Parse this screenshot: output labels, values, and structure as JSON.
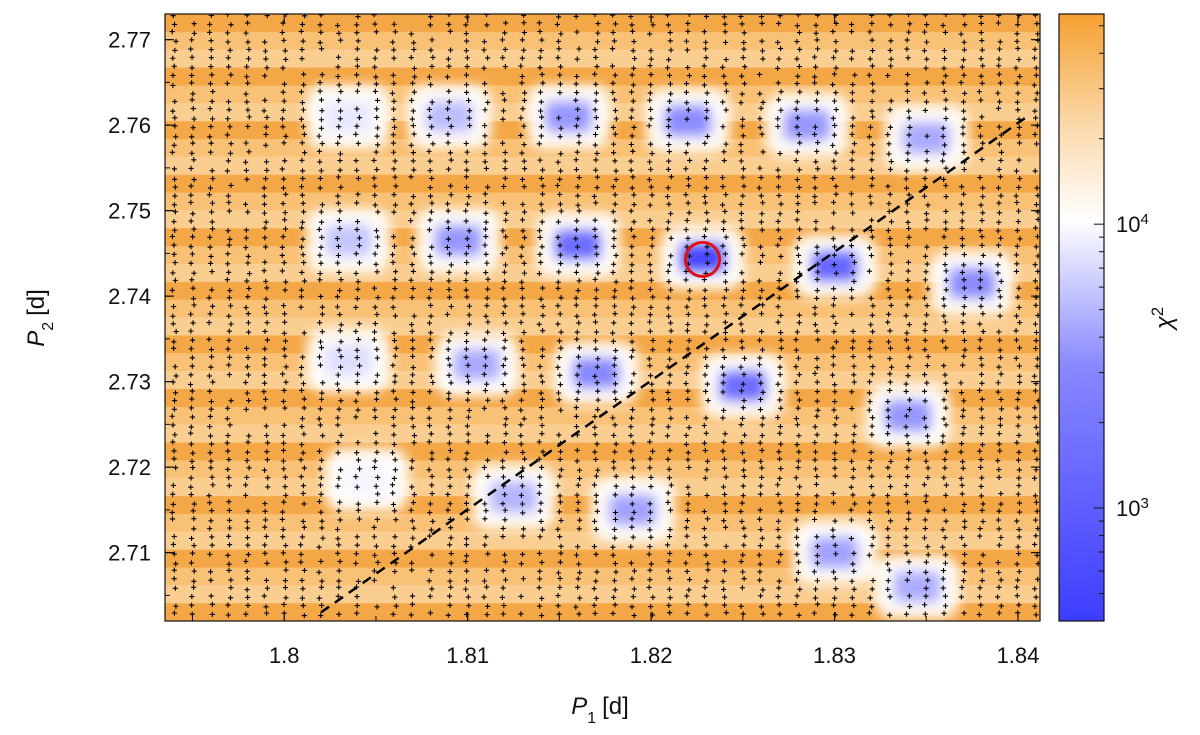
{
  "chart_data": {
    "type": "heatmap",
    "title": "",
    "xlabel": {
      "symbol": "P",
      "subscript": "1",
      "unit": "[d]"
    },
    "ylabel": {
      "symbol": "P",
      "subscript": "2",
      "unit": "[d]"
    },
    "xlim": [
      1.7935,
      1.8412
    ],
    "ylim": [
      2.702,
      2.773
    ],
    "x_ticks": [
      {
        "value": 1.8,
        "label": "1.8"
      },
      {
        "value": 1.81,
        "label": "1.81"
      },
      {
        "value": 1.82,
        "label": "1.82"
      },
      {
        "value": 1.83,
        "label": "1.83"
      },
      {
        "value": 1.84,
        "label": "1.84"
      }
    ],
    "y_ticks": [
      {
        "value": 2.71,
        "label": "2.71"
      },
      {
        "value": 2.72,
        "label": "2.72"
      },
      {
        "value": 2.73,
        "label": "2.73"
      },
      {
        "value": 2.74,
        "label": "2.74"
      },
      {
        "value": 2.75,
        "label": "2.75"
      },
      {
        "value": 2.76,
        "label": "2.76"
      },
      {
        "value": 2.77,
        "label": "2.77"
      }
    ],
    "colorbar": {
      "label": {
        "symbol": "χ",
        "superscript": "2"
      },
      "scale": "log",
      "range": [
        400,
        55000
      ],
      "ticks": [
        {
          "value": 1000,
          "base": "10",
          "exponent": "3"
        },
        {
          "value": 10000,
          "base": "10",
          "exponent": "4"
        }
      ],
      "colors": {
        "low": "#3d3dff",
        "mid": "#ffffff",
        "high": "#f5a030"
      }
    },
    "background_chi2": 20000,
    "minima": [
      {
        "p1": 1.8035,
        "p2": 2.761,
        "chi2": 7000
      },
      {
        "p1": 1.809,
        "p2": 2.761,
        "chi2": 3500
      },
      {
        "p1": 1.8155,
        "p2": 2.761,
        "chi2": 1800
      },
      {
        "p1": 1.822,
        "p2": 2.7605,
        "chi2": 1500
      },
      {
        "p1": 1.8285,
        "p2": 2.76,
        "chi2": 1800
      },
      {
        "p1": 1.835,
        "p2": 2.7585,
        "chi2": 2500
      },
      {
        "p1": 1.8035,
        "p2": 2.7465,
        "chi2": 4000
      },
      {
        "p1": 1.8095,
        "p2": 2.7465,
        "chi2": 1800
      },
      {
        "p1": 1.816,
        "p2": 2.746,
        "chi2": 900
      },
      {
        "p1": 1.8228,
        "p2": 2.7445,
        "chi2": 500
      },
      {
        "p1": 1.83,
        "p2": 2.7435,
        "chi2": 800
      },
      {
        "p1": 1.8375,
        "p2": 2.7415,
        "chi2": 1500
      },
      {
        "p1": 1.8035,
        "p2": 2.7325,
        "chi2": 6000
      },
      {
        "p1": 1.8105,
        "p2": 2.732,
        "chi2": 2500
      },
      {
        "p1": 1.817,
        "p2": 2.731,
        "chi2": 1400
      },
      {
        "p1": 1.825,
        "p2": 2.7295,
        "chi2": 900
      },
      {
        "p1": 1.834,
        "p2": 2.726,
        "chi2": 1800
      },
      {
        "p1": 1.8125,
        "p2": 2.7165,
        "chi2": 3000
      },
      {
        "p1": 1.819,
        "p2": 2.715,
        "chi2": 2200
      },
      {
        "p1": 1.83,
        "p2": 2.71,
        "chi2": 2200
      },
      {
        "p1": 1.8345,
        "p2": 2.706,
        "chi2": 2600
      },
      {
        "p1": 1.8045,
        "p2": 2.7185,
        "chi2": 9000
      }
    ],
    "best_fit": {
      "p1": 1.8228,
      "p2": 2.7443,
      "marker": "circle",
      "color": "#e01010"
    },
    "dashed_line": {
      "from": {
        "p1": 1.802,
        "p2": 2.703
      },
      "to": {
        "p1": 1.8405,
        "p2": 2.761
      }
    },
    "sample_points": {
      "marker": "plus",
      "x_step": 0.001,
      "y_step": 0.001,
      "fill_fraction": 0.93
    }
  }
}
